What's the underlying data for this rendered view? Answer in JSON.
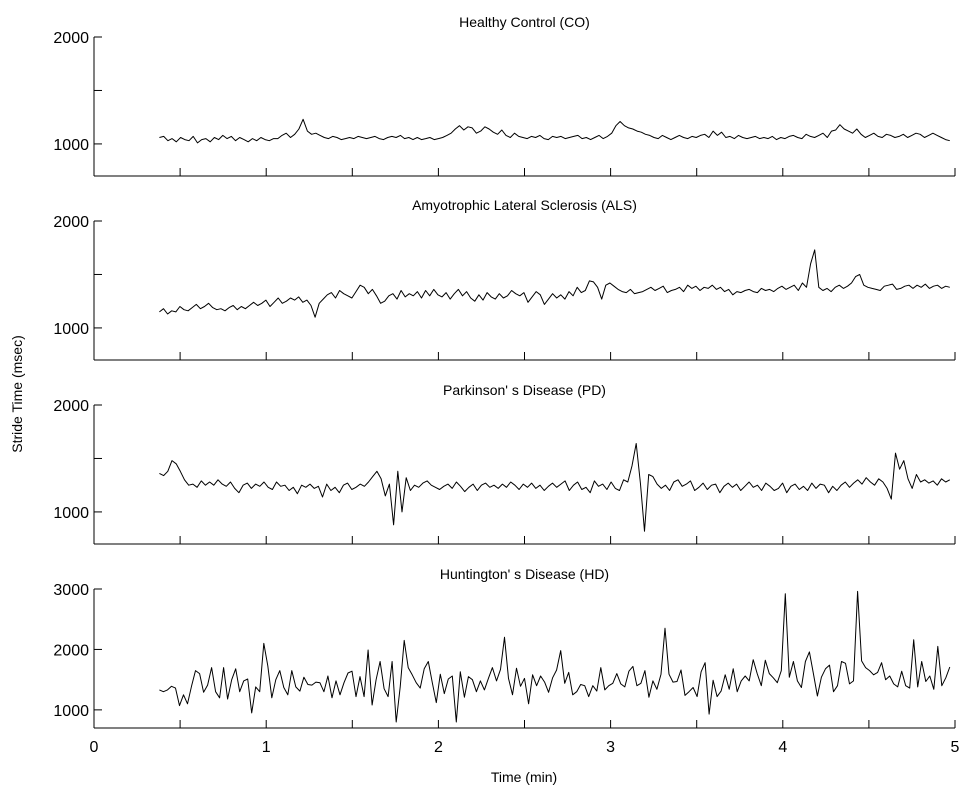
{
  "figure": {
    "ylabel": "Stride Time (msec)",
    "xlabel": "Time (min)"
  },
  "chart_data": [
    {
      "type": "line",
      "title": "Healthy Control (CO)",
      "xlim": [
        0,
        5
      ],
      "ylim": [
        700,
        2000
      ],
      "yticks": [
        1000,
        2000
      ],
      "minor_yticks": [
        1500
      ],
      "xticks": [
        0.5,
        1,
        1.5,
        2,
        2.5,
        3,
        3.5,
        4,
        4.5,
        5
      ],
      "x_ticklabels_shown": false,
      "series": [
        {
          "x_start": 0.38,
          "x_end": 4.97,
          "values": [
            1060,
            1070,
            1030,
            1050,
            1020,
            1060,
            1040,
            1030,
            1070,
            1010,
            1040,
            1050,
            1020,
            1060,
            1040,
            1080,
            1050,
            1070,
            1030,
            1060,
            1040,
            1020,
            1050,
            1030,
            1060,
            1040,
            1030,
            1050,
            1050,
            1080,
            1100,
            1060,
            1090,
            1140,
            1230,
            1120,
            1090,
            1100,
            1080,
            1060,
            1050,
            1070,
            1060,
            1040,
            1050,
            1060,
            1050,
            1070,
            1060,
            1050,
            1060,
            1070,
            1050,
            1040,
            1060,
            1070,
            1060,
            1080,
            1050,
            1060,
            1040,
            1060,
            1040,
            1050,
            1060,
            1040,
            1050,
            1060,
            1080,
            1100,
            1140,
            1170,
            1130,
            1160,
            1150,
            1100,
            1120,
            1160,
            1140,
            1110,
            1090,
            1130,
            1080,
            1060,
            1100,
            1070,
            1060,
            1050,
            1070,
            1060,
            1080,
            1050,
            1040,
            1070,
            1060,
            1070,
            1050,
            1060,
            1070,
            1080,
            1050,
            1060,
            1040,
            1060,
            1080,
            1050,
            1070,
            1100,
            1170,
            1210,
            1170,
            1150,
            1140,
            1120,
            1110,
            1090,
            1080,
            1060,
            1050,
            1080,
            1060,
            1040,
            1060,
            1080,
            1060,
            1050,
            1070,
            1060,
            1080,
            1090,
            1060,
            1120,
            1080,
            1110,
            1060,
            1070,
            1050,
            1080,
            1060,
            1050,
            1060,
            1070,
            1050,
            1060,
            1050,
            1070,
            1040,
            1060,
            1050,
            1070,
            1080,
            1060,
            1050,
            1090,
            1070,
            1060,
            1080,
            1100,
            1060,
            1120,
            1130,
            1180,
            1140,
            1120,
            1100,
            1140,
            1090,
            1060,
            1080,
            1100,
            1070,
            1060,
            1090,
            1080,
            1060,
            1070,
            1090,
            1060,
            1080,
            1100,
            1090,
            1060,
            1080,
            1100,
            1080,
            1060,
            1040,
            1030
          ]
        }
      ]
    },
    {
      "type": "line",
      "title": "Amyotrophic Lateral Sclerosis (ALS)",
      "xlim": [
        0,
        5
      ],
      "ylim": [
        700,
        2000
      ],
      "yticks": [
        1000,
        2000
      ],
      "minor_yticks": [
        1500
      ],
      "xticks": [
        0.5,
        1,
        1.5,
        2,
        2.5,
        3,
        3.5,
        4,
        4.5,
        5
      ],
      "x_ticklabels_shown": false,
      "series": [
        {
          "x_start": 0.38,
          "x_end": 4.97,
          "values": [
            1150,
            1180,
            1130,
            1160,
            1150,
            1200,
            1170,
            1160,
            1190,
            1220,
            1180,
            1200,
            1230,
            1190,
            1170,
            1180,
            1160,
            1190,
            1210,
            1170,
            1200,
            1180,
            1210,
            1240,
            1210,
            1230,
            1260,
            1200,
            1240,
            1280,
            1230,
            1250,
            1280,
            1260,
            1290,
            1240,
            1260,
            1210,
            1100,
            1230,
            1270,
            1310,
            1330,
            1280,
            1350,
            1320,
            1300,
            1280,
            1340,
            1400,
            1380,
            1320,
            1360,
            1300,
            1230,
            1250,
            1300,
            1320,
            1270,
            1350,
            1290,
            1320,
            1300,
            1340,
            1280,
            1350,
            1300,
            1360,
            1310,
            1290,
            1330,
            1270,
            1320,
            1360,
            1300,
            1340,
            1280,
            1250,
            1310,
            1260,
            1330,
            1290,
            1270,
            1320,
            1280,
            1300,
            1350,
            1320,
            1300,
            1330,
            1240,
            1290,
            1340,
            1310,
            1220,
            1270,
            1320,
            1280,
            1310,
            1270,
            1340,
            1300,
            1380,
            1330,
            1350,
            1440,
            1430,
            1380,
            1270,
            1400,
            1420,
            1390,
            1360,
            1340,
            1330,
            1360,
            1320,
            1330,
            1340,
            1360,
            1380,
            1350,
            1370,
            1390,
            1330,
            1350,
            1360,
            1380,
            1340,
            1400,
            1370,
            1390,
            1350,
            1380,
            1370,
            1400,
            1360,
            1380,
            1340,
            1360,
            1310,
            1340,
            1330,
            1350,
            1360,
            1340,
            1330,
            1370,
            1350,
            1360,
            1340,
            1370,
            1390,
            1360,
            1380,
            1400,
            1350,
            1420,
            1380,
            1600,
            1730,
            1380,
            1350,
            1370,
            1340,
            1380,
            1400,
            1370,
            1390,
            1420,
            1480,
            1500,
            1400,
            1380,
            1370,
            1360,
            1350,
            1390,
            1400,
            1410,
            1360,
            1370,
            1390,
            1400,
            1370,
            1400,
            1380,
            1410,
            1370,
            1390,
            1400,
            1370,
            1390,
            1380
          ]
        }
      ]
    },
    {
      "type": "line",
      "title": "Parkinson' s Disease (PD)",
      "xlim": [
        0,
        5
      ],
      "ylim": [
        700,
        2000
      ],
      "yticks": [
        1000,
        2000
      ],
      "minor_yticks": [
        1500
      ],
      "xticks": [
        0.5,
        1,
        1.5,
        2,
        2.5,
        3,
        3.5,
        4,
        4.5,
        5
      ],
      "x_ticklabels_shown": false,
      "series": [
        {
          "x_start": 0.38,
          "x_end": 4.97,
          "values": [
            1360,
            1340,
            1380,
            1480,
            1450,
            1380,
            1300,
            1250,
            1260,
            1230,
            1290,
            1250,
            1280,
            1250,
            1300,
            1260,
            1240,
            1280,
            1220,
            1180,
            1250,
            1270,
            1220,
            1260,
            1240,
            1280,
            1230,
            1210,
            1280,
            1240,
            1250,
            1200,
            1230,
            1170,
            1250,
            1230,
            1260,
            1220,
            1240,
            1140,
            1260,
            1200,
            1230,
            1180,
            1250,
            1270,
            1210,
            1230,
            1260,
            1240,
            1280,
            1330,
            1380,
            1310,
            1150,
            1260,
            880,
            1380,
            1000,
            1320,
            1200,
            1250,
            1230,
            1270,
            1290,
            1250,
            1230,
            1210,
            1240,
            1260,
            1220,
            1280,
            1240,
            1190,
            1230,
            1260,
            1200,
            1250,
            1270,
            1230,
            1250,
            1220,
            1260,
            1230,
            1280,
            1250,
            1210,
            1260,
            1230,
            1270,
            1220,
            1250,
            1200,
            1240,
            1270,
            1230,
            1260,
            1290,
            1200,
            1250,
            1280,
            1210,
            1230,
            1180,
            1290,
            1240,
            1260,
            1210,
            1280,
            1220,
            1200,
            1300,
            1280,
            1430,
            1640,
            1270,
            820,
            1350,
            1330,
            1260,
            1220,
            1250,
            1200,
            1280,
            1300,
            1240,
            1260,
            1290,
            1200,
            1230,
            1270,
            1210,
            1250,
            1260,
            1180,
            1240,
            1270,
            1230,
            1260,
            1200,
            1240,
            1280,
            1230,
            1250,
            1200,
            1270,
            1240,
            1200,
            1220,
            1270,
            1180,
            1240,
            1260,
            1210,
            1240,
            1200,
            1270,
            1220,
            1260,
            1250,
            1180,
            1240,
            1200,
            1250,
            1280,
            1230,
            1270,
            1300,
            1260,
            1320,
            1280,
            1250,
            1310,
            1280,
            1220,
            1120,
            1550,
            1400,
            1480,
            1310,
            1220,
            1350,
            1280,
            1300,
            1270,
            1290,
            1250,
            1310,
            1280,
            1300
          ]
        }
      ]
    },
    {
      "type": "line",
      "title": "Huntington' s Disease (HD)",
      "xlim": [
        0,
        5
      ],
      "xticklabels": [
        "0",
        "1",
        "2",
        "3",
        "4",
        "5"
      ],
      "ylim": [
        700,
        3000
      ],
      "yticks": [
        1000,
        2000,
        3000
      ],
      "xticks": [
        0.5,
        1,
        1.5,
        2,
        2.5,
        3,
        3.5,
        4,
        4.5,
        5
      ],
      "x_ticklabels_shown": true,
      "series": [
        {
          "x_start": 0.38,
          "x_end": 4.97,
          "values": [
            1330,
            1300,
            1330,
            1390,
            1360,
            1070,
            1250,
            1100,
            1390,
            1650,
            1600,
            1290,
            1410,
            1700,
            1300,
            1200,
            1700,
            1180,
            1500,
            1680,
            1300,
            1480,
            1510,
            950,
            1380,
            1300,
            2100,
            1730,
            1200,
            1500,
            1650,
            1370,
            1250,
            1650,
            1380,
            1310,
            1540,
            1420,
            1410,
            1460,
            1450,
            1300,
            1560,
            1200,
            1480,
            1250,
            1450,
            1610,
            1640,
            1220,
            1550,
            1220,
            1990,
            1080,
            1500,
            1800,
            1350,
            1220,
            1800,
            800,
            1380,
            2150,
            1700,
            1580,
            1450,
            1360,
            1680,
            1800,
            1450,
            1120,
            1590,
            1270,
            1510,
            1560,
            800,
            1630,
            1210,
            1550,
            1500,
            1300,
            1480,
            1330,
            1520,
            1700,
            1480,
            1670,
            2200,
            1520,
            1250,
            1690,
            1390,
            1520,
            1100,
            1580,
            1400,
            1560,
            1460,
            1290,
            1530,
            1660,
            1980,
            1440,
            1620,
            1250,
            1300,
            1420,
            1400,
            1220,
            1400,
            1310,
            1700,
            1330,
            1400,
            1440,
            1600,
            1430,
            1380,
            1640,
            1720,
            1400,
            1440,
            1650,
            1210,
            1480,
            1340,
            1590,
            2350,
            1590,
            1460,
            1470,
            1660,
            1240,
            1300,
            1370,
            1220,
            1630,
            1780,
            930,
            1490,
            1220,
            1310,
            1580,
            1340,
            1680,
            1300,
            1480,
            1560,
            1480,
            1830,
            1600,
            1400,
            1820,
            1600,
            1530,
            1450,
            1650,
            2920,
            1540,
            1800,
            1480,
            1370,
            1800,
            1960,
            1600,
            1230,
            1540,
            1680,
            1740,
            1300,
            1400,
            1800,
            1770,
            1430,
            1480,
            2960,
            1810,
            1700,
            1650,
            1580,
            1620,
            1780,
            1500,
            1560,
            1430,
            1380,
            1640,
            1400,
            1360,
            2160,
            1380,
            1800,
            1470,
            1560,
            1340,
            2050,
            1400,
            1530,
            1710
          ]
        }
      ]
    }
  ]
}
